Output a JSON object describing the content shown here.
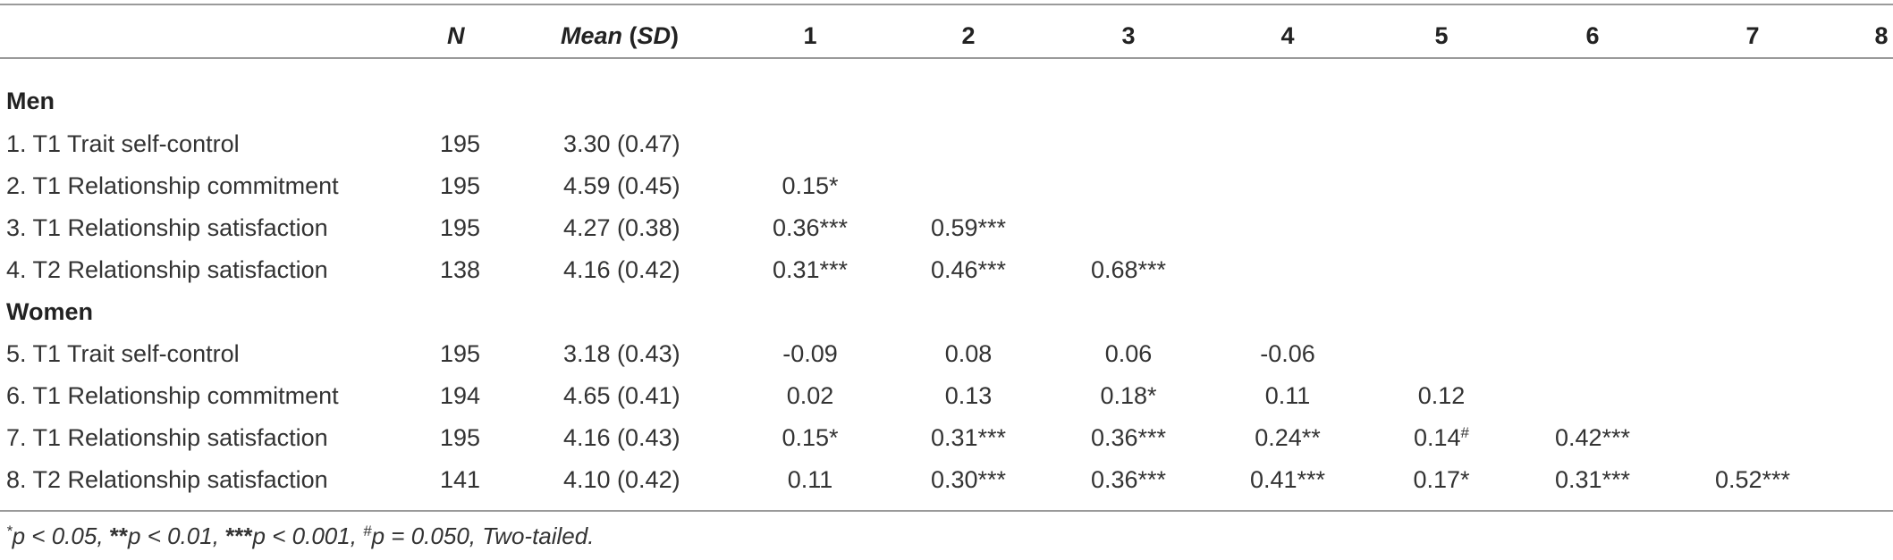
{
  "header": {
    "n_label": "N",
    "mean_label": "Mean",
    "sd_label": "SD",
    "columns": [
      "1",
      "2",
      "3",
      "4",
      "5",
      "6",
      "7",
      "8"
    ]
  },
  "groups": {
    "men": "Men",
    "women": "Women"
  },
  "rows": [
    {
      "label": "1. T1 Trait self-control",
      "n": "195",
      "mean_sd": "3.30 (0.47)",
      "cells": []
    },
    {
      "label": "2. T1 Relationship commitment",
      "n": "195",
      "mean_sd": "4.59 (0.45)",
      "cells": [
        {
          "v": "0.15",
          "s": "*"
        }
      ]
    },
    {
      "label": "3. T1 Relationship satisfaction",
      "n": "195",
      "mean_sd": "4.27 (0.38)",
      "cells": [
        {
          "v": "0.36",
          "s": "***"
        },
        {
          "v": "0.59",
          "s": "***"
        }
      ]
    },
    {
      "label": "4. T2 Relationship satisfaction",
      "n": "138",
      "mean_sd": "4.16 (0.42)",
      "cells": [
        {
          "v": "0.31",
          "s": "***"
        },
        {
          "v": "0.46",
          "s": "***"
        },
        {
          "v": "0.68",
          "s": "***"
        }
      ]
    },
    {
      "label": "5. T1 Trait self-control",
      "n": "195",
      "mean_sd": "3.18 (0.43)",
      "cells": [
        {
          "v": "-0.09",
          "s": ""
        },
        {
          "v": "0.08",
          "s": ""
        },
        {
          "v": "0.06",
          "s": ""
        },
        {
          "v": "-0.06",
          "s": ""
        }
      ]
    },
    {
      "label": "6. T1 Relationship commitment",
      "n": "194",
      "mean_sd": "4.65 (0.41)",
      "cells": [
        {
          "v": "0.02",
          "s": ""
        },
        {
          "v": "0.13",
          "s": ""
        },
        {
          "v": "0.18",
          "s": "*"
        },
        {
          "v": "0.11",
          "s": ""
        },
        {
          "v": "0.12",
          "s": ""
        }
      ]
    },
    {
      "label": "7. T1 Relationship satisfaction",
      "n": "195",
      "mean_sd": "4.16 (0.43)",
      "cells": [
        {
          "v": "0.15",
          "s": "*"
        },
        {
          "v": "0.31",
          "s": "***"
        },
        {
          "v": "0.36",
          "s": "***"
        },
        {
          "v": "0.24",
          "s": "**"
        },
        {
          "v": "0.14",
          "s": "",
          "sup": "#"
        },
        {
          "v": "0.42",
          "s": "***"
        }
      ]
    },
    {
      "label": "8. T2 Relationship satisfaction",
      "n": "141",
      "mean_sd": "4.10 (0.42)",
      "cells": [
        {
          "v": "0.11",
          "s": ""
        },
        {
          "v": "0.30",
          "s": "***"
        },
        {
          "v": "0.36",
          "s": "***"
        },
        {
          "v": "0.41",
          "s": "***"
        },
        {
          "v": "0.17",
          "s": "*"
        },
        {
          "v": "0.31",
          "s": "***"
        },
        {
          "v": "0.52",
          "s": "***"
        }
      ]
    }
  ],
  "note": {
    "p05": "p < 0.05, ",
    "p01": "p < 0.01, ",
    "p001": "p < 0.001, ",
    "p050": "p = 0.050, Two-tailed."
  }
}
